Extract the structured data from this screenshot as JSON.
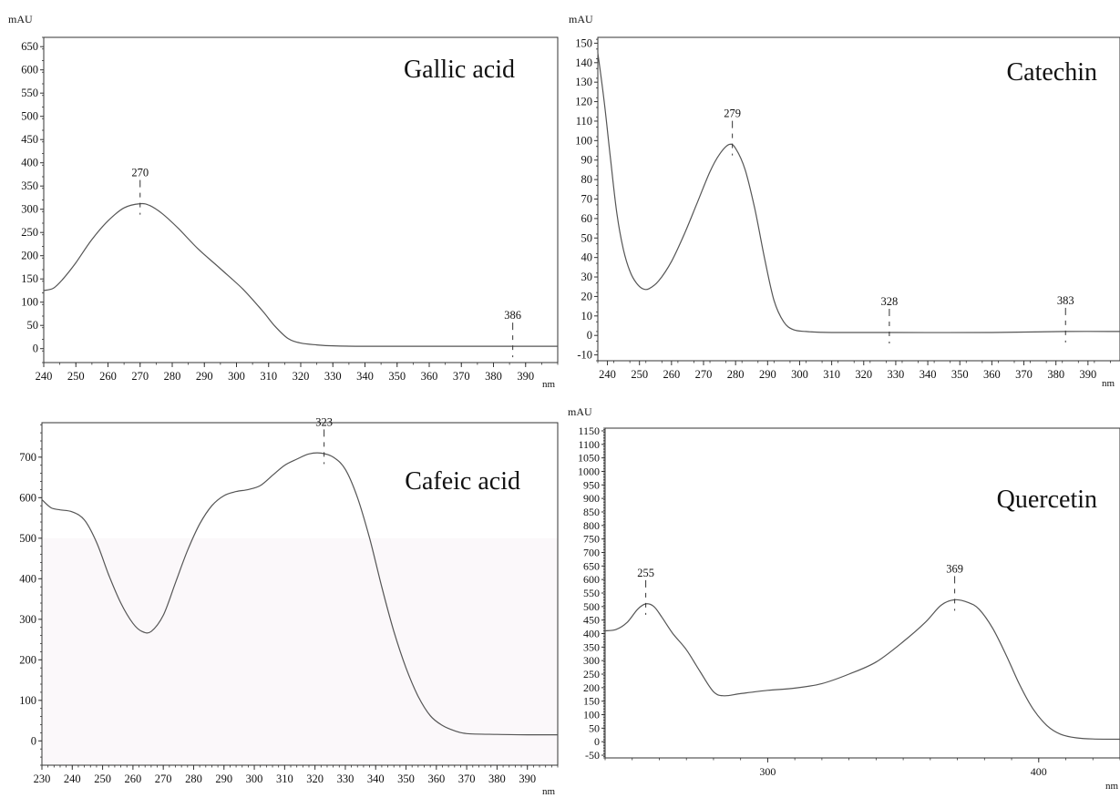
{
  "chart_data": [
    {
      "type": "line",
      "title": "Gallic acid",
      "ylabel": "mAU",
      "xlabel": "nm",
      "xlim": [
        240,
        400
      ],
      "ylim": [
        -30,
        670
      ],
      "x_ticks": [
        240,
        250,
        260,
        270,
        280,
        290,
        300,
        310,
        320,
        330,
        340,
        350,
        360,
        370,
        380,
        390
      ],
      "y_ticks": [
        0,
        50,
        100,
        150,
        200,
        250,
        300,
        350,
        400,
        450,
        500,
        550,
        600,
        650
      ],
      "series": [
        {
          "points": [
            [
              240,
              125
            ],
            [
              243,
              130
            ],
            [
              246,
              150
            ],
            [
              250,
              185
            ],
            [
              255,
              235
            ],
            [
              260,
              275
            ],
            [
              265,
              303
            ],
            [
              270,
              312
            ],
            [
              273,
              308
            ],
            [
              277,
              290
            ],
            [
              282,
              258
            ],
            [
              288,
              215
            ],
            [
              295,
              172
            ],
            [
              302,
              128
            ],
            [
              308,
              82
            ],
            [
              312,
              48
            ],
            [
              316,
              22
            ],
            [
              320,
              12
            ],
            [
              325,
              8
            ],
            [
              330,
              6
            ],
            [
              340,
              5
            ],
            [
              360,
              5
            ],
            [
              380,
              5
            ],
            [
              400,
              5
            ]
          ]
        }
      ],
      "peaks": [
        {
          "x": 270,
          "label": "270",
          "y": 312
        },
        {
          "x": 386,
          "label": "386",
          "y": 5
        }
      ]
    },
    {
      "type": "line",
      "title": "Catechin",
      "ylabel": "mAU",
      "xlabel": "nm",
      "xlim": [
        237,
        400
      ],
      "ylim": [
        -13,
        153
      ],
      "x_ticks": [
        240,
        250,
        260,
        270,
        280,
        290,
        300,
        310,
        320,
        330,
        340,
        350,
        360,
        370,
        380,
        390
      ],
      "y_ticks": [
        -10,
        0,
        10,
        20,
        30,
        40,
        50,
        60,
        70,
        80,
        90,
        100,
        110,
        120,
        130,
        140,
        150
      ],
      "series": [
        {
          "points": [
            [
              237,
              145
            ],
            [
              239,
              120
            ],
            [
              241,
              90
            ],
            [
              243,
              62
            ],
            [
              245,
              44
            ],
            [
              247,
              33
            ],
            [
              249,
              27
            ],
            [
              251,
              24
            ],
            [
              253,
              24
            ],
            [
              256,
              28
            ],
            [
              260,
              38
            ],
            [
              264,
              52
            ],
            [
              268,
              68
            ],
            [
              272,
              84
            ],
            [
              275,
              93
            ],
            [
              278,
              98
            ],
            [
              280,
              96
            ],
            [
              283,
              85
            ],
            [
              286,
              65
            ],
            [
              289,
              40
            ],
            [
              292,
              18
            ],
            [
              295,
              7
            ],
            [
              298,
              3
            ],
            [
              302,
              2
            ],
            [
              310,
              1.5
            ],
            [
              330,
              1.5
            ],
            [
              360,
              1.5
            ],
            [
              383,
              2
            ],
            [
              400,
              2
            ]
          ]
        }
      ],
      "peaks": [
        {
          "x": 279,
          "label": "279",
          "y": 98
        },
        {
          "x": 328,
          "label": "328",
          "y": 1.5
        },
        {
          "x": 383,
          "label": "383",
          "y": 2
        }
      ]
    },
    {
      "type": "line",
      "title": "Cafeic acid",
      "ylabel": "",
      "xlabel": "nm",
      "xlim": [
        230,
        400
      ],
      "ylim": [
        -60,
        785
      ],
      "x_ticks": [
        230,
        240,
        250,
        260,
        270,
        280,
        290,
        300,
        310,
        320,
        330,
        340,
        350,
        360,
        370,
        380,
        390
      ],
      "y_ticks": [
        0,
        100,
        200,
        300,
        400,
        500,
        600,
        700
      ],
      "series": [
        {
          "points": [
            [
              230,
              595
            ],
            [
              233,
              575
            ],
            [
              236,
              570
            ],
            [
              240,
              565
            ],
            [
              244,
              545
            ],
            [
              248,
              490
            ],
            [
              252,
              410
            ],
            [
              256,
              340
            ],
            [
              260,
              290
            ],
            [
              263,
              270
            ],
            [
              266,
              270
            ],
            [
              270,
              310
            ],
            [
              274,
              390
            ],
            [
              278,
              470
            ],
            [
              282,
              535
            ],
            [
              286,
              580
            ],
            [
              290,
              605
            ],
            [
              294,
              615
            ],
            [
              298,
              620
            ],
            [
              302,
              630
            ],
            [
              306,
              655
            ],
            [
              310,
              680
            ],
            [
              314,
              695
            ],
            [
              318,
              708
            ],
            [
              322,
              710
            ],
            [
              326,
              700
            ],
            [
              330,
              670
            ],
            [
              334,
              600
            ],
            [
              338,
              500
            ],
            [
              342,
              380
            ],
            [
              346,
              270
            ],
            [
              350,
              180
            ],
            [
              354,
              110
            ],
            [
              358,
              62
            ],
            [
              362,
              38
            ],
            [
              366,
              25
            ],
            [
              370,
              18
            ],
            [
              380,
              16
            ],
            [
              390,
              15
            ],
            [
              400,
              15
            ]
          ]
        }
      ],
      "peaks": [
        {
          "x": 323,
          "label": "323",
          "y": 710
        }
      ]
    },
    {
      "type": "line",
      "title": "Quercetin",
      "ylabel": "mAU",
      "xlabel": "nm",
      "xlim": [
        240,
        430
      ],
      "ylim": [
        -60,
        1160
      ],
      "x_ticks": [
        300,
        400
      ],
      "y_ticks": [
        -50,
        0,
        50,
        100,
        150,
        200,
        250,
        300,
        350,
        400,
        450,
        500,
        550,
        600,
        650,
        700,
        750,
        800,
        850,
        900,
        950,
        1000,
        1050,
        1100,
        1150
      ],
      "series": [
        {
          "points": [
            [
              240,
              410
            ],
            [
              244,
              415
            ],
            [
              248,
              440
            ],
            [
              252,
              490
            ],
            [
              255,
              510
            ],
            [
              258,
              500
            ],
            [
              261,
              460
            ],
            [
              265,
              400
            ],
            [
              270,
              340
            ],
            [
              275,
              260
            ],
            [
              280,
              185
            ],
            [
              284,
              170
            ],
            [
              290,
              178
            ],
            [
              300,
              190
            ],
            [
              310,
              198
            ],
            [
              320,
              215
            ],
            [
              330,
              250
            ],
            [
              340,
              295
            ],
            [
              350,
              370
            ],
            [
              358,
              440
            ],
            [
              364,
              505
            ],
            [
              369,
              525
            ],
            [
              374,
              515
            ],
            [
              378,
              490
            ],
            [
              383,
              420
            ],
            [
              388,
              320
            ],
            [
              393,
              210
            ],
            [
              398,
              120
            ],
            [
              403,
              60
            ],
            [
              408,
              28
            ],
            [
              414,
              14
            ],
            [
              420,
              10
            ],
            [
              430,
              9
            ]
          ]
        }
      ],
      "peaks": [
        {
          "x": 255,
          "label": "255",
          "y": 510
        },
        {
          "x": 369,
          "label": "369",
          "y": 525
        }
      ]
    }
  ]
}
